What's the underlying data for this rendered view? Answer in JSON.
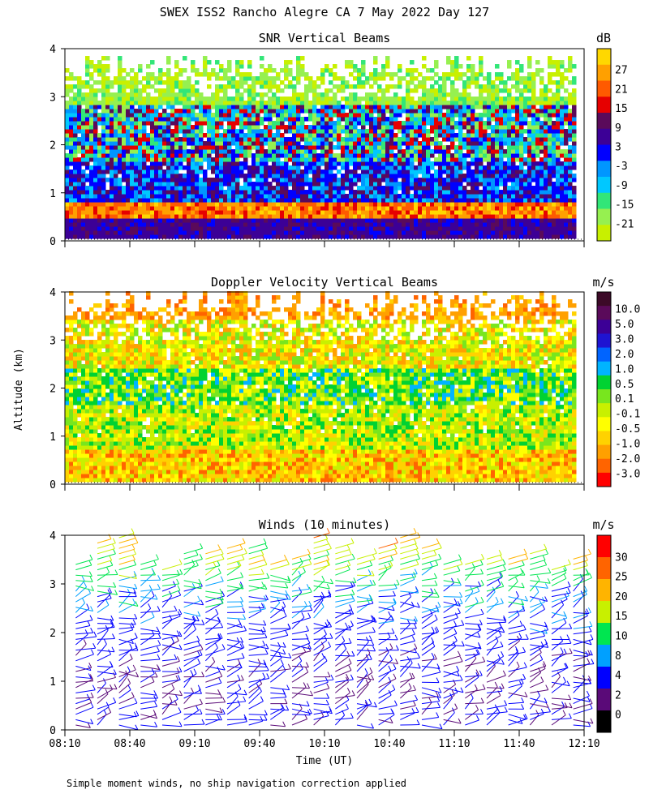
{
  "figure": {
    "title": "SWEX ISS2 Rancho Alegre CA   7 May 2022 Day 127",
    "ylabel": "Altitude (km)",
    "xlabel": "Time (UT)",
    "footnote": "Simple moment winds, no ship navigation correction applied"
  },
  "chart_data": [
    {
      "type": "heatmap",
      "title": "SNR Vertical Beams",
      "colorbar_unit": "dB",
      "colorbar_ticks": [
        "27",
        "21",
        "15",
        "9",
        "3",
        "-3",
        "-9",
        "-15",
        "-21"
      ],
      "colorbar_colors": [
        "#ffd800",
        "#ffa000",
        "#ff5a00",
        "#e60000",
        "#5a0a5a",
        "#3c0096",
        "#0000ff",
        "#0096ff",
        "#00c8ff",
        "#32e678",
        "#96f050",
        "#c8f000"
      ],
      "ylim": [
        0,
        4
      ],
      "yticks": [
        "0",
        "1",
        "2",
        "3",
        "4"
      ],
      "xlim": [
        "08:10",
        "12:10"
      ],
      "layers": [
        {
          "alt_range": [
            0.1,
            0.45
          ],
          "level": "9 to 21 dB"
        },
        {
          "alt_range": [
            0.45,
            0.8
          ],
          "level": "15 to 27 dB"
        },
        {
          "alt_range": [
            0.8,
            1.6
          ],
          "level": "-9 to 9 dB"
        },
        {
          "alt_range": [
            1.6,
            2.8
          ],
          "level": "-15 to 15 dB"
        },
        {
          "alt_range": [
            2.8,
            3.9
          ],
          "level": "-21 to -9 dB"
        }
      ]
    },
    {
      "type": "heatmap",
      "title": "Doppler Velocity Vertical Beams",
      "colorbar_unit": "m/s",
      "colorbar_ticks": [
        "10.0",
        "5.0",
        "3.0",
        "2.0",
        "1.0",
        "0.5",
        "0.1",
        "-0.1",
        "-0.5",
        "-1.0",
        "-2.0",
        "-3.0"
      ],
      "colorbar_colors": [
        "#3c0a28",
        "#5a0a5a",
        "#3c0096",
        "#1e14d2",
        "#0064ff",
        "#00b4ff",
        "#00d232",
        "#78e61e",
        "#c8f000",
        "#ffff00",
        "#ffd200",
        "#ffa000",
        "#ff6400",
        "#ff0000"
      ],
      "ylim": [
        0,
        4
      ],
      "yticks": [
        "0",
        "1",
        "2",
        "3",
        "4"
      ],
      "xlim": [
        "08:10",
        "12:10"
      ],
      "layers": [
        {
          "alt_range": [
            0.0,
            0.7
          ],
          "level": "-1.0 to -0.5 m/s"
        },
        {
          "alt_range": [
            0.7,
            1.6
          ],
          "level": "-0.5 to 0.5 m/s"
        },
        {
          "alt_range": [
            1.6,
            2.4
          ],
          "level": "0.1 to 2.0 m/s"
        },
        {
          "alt_range": [
            2.4,
            3.4
          ],
          "level": "-0.5 to 0.5 m/s"
        },
        {
          "alt_range": [
            3.4,
            4.0
          ],
          "level": "-2.0 to -0.5 m/s"
        }
      ]
    },
    {
      "type": "barbs",
      "title": "Winds (10 minutes)",
      "colorbar_unit": "m/s",
      "colorbar_ticks": [
        "30",
        "25",
        "20",
        "15",
        "10",
        "8",
        "4",
        "2",
        "0"
      ],
      "colorbar_colors": [
        "#ff0000",
        "#ff6400",
        "#ffb400",
        "#c8f000",
        "#00e650",
        "#00a0ff",
        "#0000ff",
        "#5a0a78",
        "#000000"
      ],
      "ylim": [
        0,
        4
      ],
      "yticks": [
        "0",
        "1",
        "2",
        "3",
        "4"
      ],
      "xticks": [
        "08:10",
        "08:40",
        "09:10",
        "09:40",
        "10:10",
        "10:40",
        "11:10",
        "11:40",
        "12:10"
      ],
      "n_profiles": 24,
      "profiles_x_start": "08:15",
      "profiles_x_step_minutes": 10,
      "speed_profile": [
        {
          "alt": 0.1,
          "speed": 5
        },
        {
          "alt": 1.0,
          "speed": 4
        },
        {
          "alt": 2.0,
          "speed": 6
        },
        {
          "alt": 2.8,
          "speed": 9
        },
        {
          "alt": 3.4,
          "speed": 16
        },
        {
          "alt": 4.0,
          "speed": 24
        }
      ]
    }
  ]
}
